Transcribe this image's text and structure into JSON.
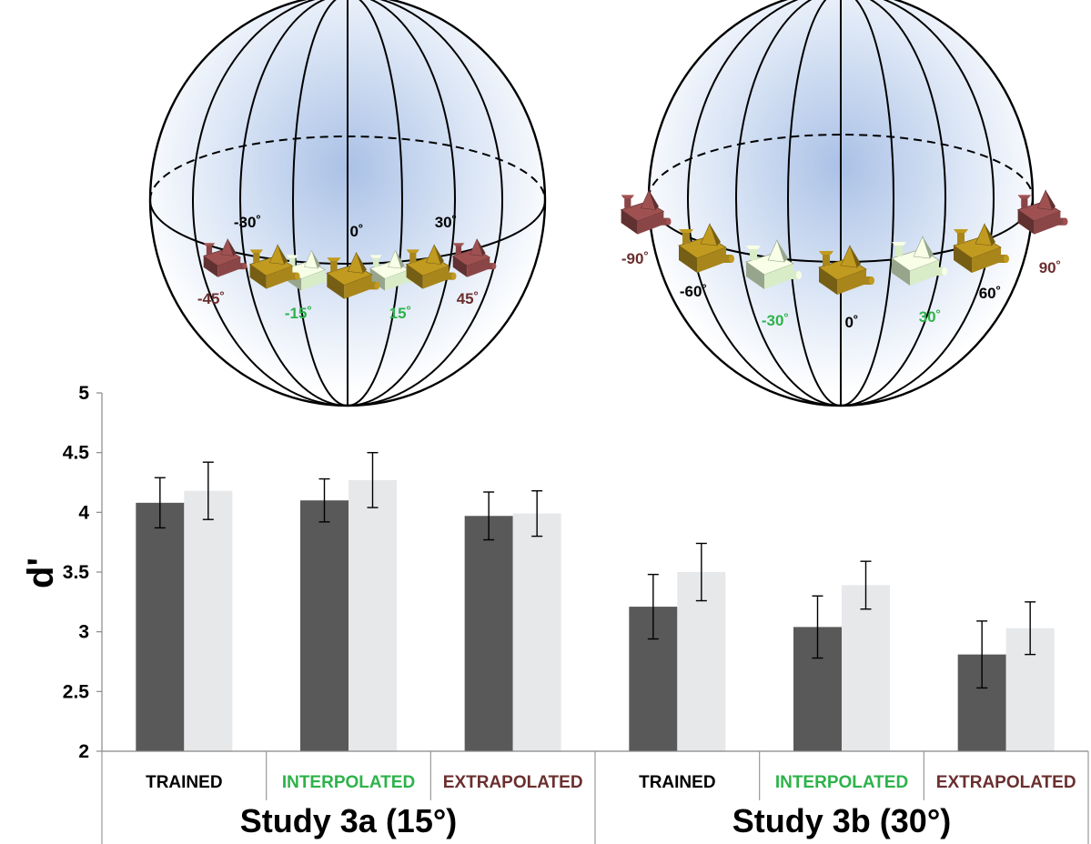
{
  "chart_data": {
    "type": "bar",
    "ylabel": "d'",
    "ylim": [
      2,
      5
    ],
    "yticks": [
      2,
      2.5,
      3,
      3.5,
      4,
      4.5,
      5
    ],
    "groups": [
      {
        "label": "Study 3a (15°)",
        "categories": [
          "TRAINED",
          "INTERPOLATED",
          "EXTRAPOLATED"
        ]
      },
      {
        "label": "Study 3b (30°)",
        "categories": [
          "TRAINED",
          "INTERPOLATED",
          "EXTRAPOLATED"
        ]
      }
    ],
    "category_colors": [
      "#000000",
      "#2db34a",
      "#6b2f2f"
    ],
    "series": [
      {
        "color": "#595959",
        "values": [
          4.08,
          4.1,
          3.97,
          3.21,
          3.04,
          2.81
        ],
        "errors": [
          0.21,
          0.18,
          0.2,
          0.27,
          0.26,
          0.28
        ]
      },
      {
        "color": "#e7e8ea",
        "values": [
          4.18,
          4.27,
          3.99,
          3.5,
          3.39,
          3.03
        ],
        "errors": [
          0.24,
          0.23,
          0.19,
          0.24,
          0.2,
          0.22
        ]
      }
    ]
  },
  "diagrams": [
    {
      "name": "sphere-15",
      "angles": [
        {
          "text": "-30˚",
          "color": "#000000"
        },
        {
          "text": "0˚",
          "color": "#000000"
        },
        {
          "text": "30˚",
          "color": "#000000"
        },
        {
          "text": "-45˚",
          "color": "#6b2f2f"
        },
        {
          "text": "-15˚",
          "color": "#2db34a"
        },
        {
          "text": "15˚",
          "color": "#2db34a"
        },
        {
          "text": "45˚",
          "color": "#6b2f2f"
        }
      ]
    },
    {
      "name": "sphere-30",
      "angles": [
        {
          "text": "-90˚",
          "color": "#6b2f2f"
        },
        {
          "text": "90˚",
          "color": "#6b2f2f"
        },
        {
          "text": "-60˚",
          "color": "#000000"
        },
        {
          "text": "60˚",
          "color": "#000000"
        },
        {
          "text": "-30˚",
          "color": "#2db34a"
        },
        {
          "text": "0˚",
          "color": "#000000"
        },
        {
          "text": "30˚",
          "color": "#2db34a"
        }
      ]
    }
  ],
  "object_colors": {
    "trained": "#a8861c",
    "interpolated": "#d8ecc8",
    "extrapolated": "#8a4646"
  }
}
